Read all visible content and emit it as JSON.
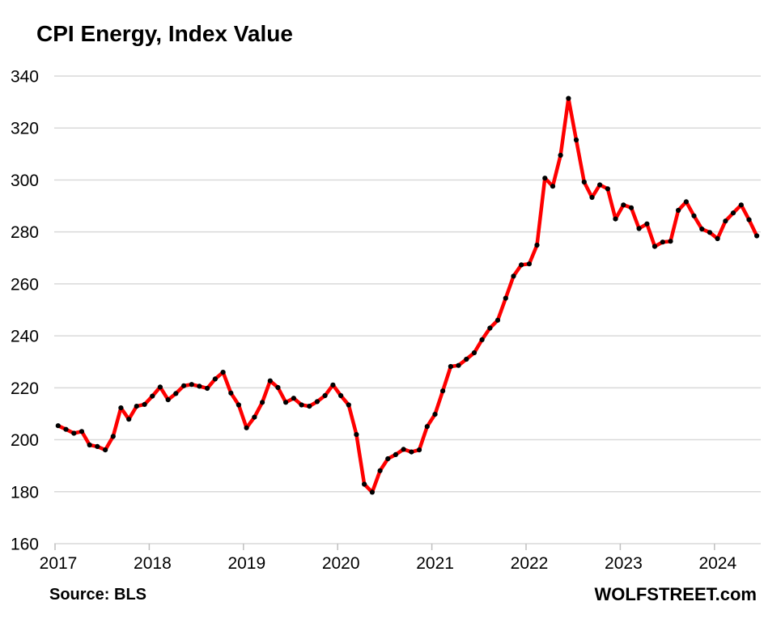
{
  "title": "CPI Energy, Index Value",
  "source_label": "Source: BLS",
  "watermark": "WOLFSTREET.com",
  "chart_data": {
    "type": "line",
    "title": "CPI Energy, Index Value",
    "xlabel": "",
    "ylabel": "Index Value",
    "frequency": "monthly",
    "x_start": "2017-01",
    "x_end": "2024-06",
    "x_tick_labels": [
      "2017",
      "2018",
      "2019",
      "2020",
      "2021",
      "2022",
      "2023",
      "2024"
    ],
    "y_ticks": [
      160,
      180,
      200,
      220,
      240,
      260,
      280,
      300,
      320,
      340
    ],
    "ylim": [
      160,
      340
    ],
    "grid": "horizontal",
    "legend": "none",
    "colors": {
      "line": "#fe0000",
      "marker": "#000000",
      "gridline": "#d9d9d9",
      "axis": "#bfbfbf"
    },
    "series": [
      {
        "name": "CPI Energy",
        "values": [
          205.4,
          204.0,
          202.5,
          203.2,
          198.0,
          197.4,
          196.1,
          201.3,
          212.3,
          207.9,
          212.9,
          213.6,
          216.8,
          220.3,
          215.4,
          217.8,
          220.8,
          221.3,
          220.6,
          219.8,
          223.4,
          226.0,
          218.0,
          213.4,
          204.6,
          208.7,
          214.4,
          222.7,
          220.1,
          214.4,
          216.0,
          213.4,
          212.9,
          214.7,
          217.0,
          221.1,
          217.0,
          213.4,
          202.0,
          182.9,
          179.8,
          188.1,
          192.7,
          194.3,
          196.3,
          195.3,
          196.1,
          205.1,
          209.8,
          218.8,
          228.2,
          228.6,
          231.0,
          233.5,
          238.5,
          243.0,
          246.0,
          254.5,
          263.0,
          267.3,
          267.7,
          274.9,
          300.7,
          297.6,
          309.5,
          331.4,
          315.4,
          299.2,
          293.3,
          298.1,
          296.6,
          285.0,
          290.4,
          289.3,
          281.3,
          283.1,
          274.4,
          276.1,
          276.4,
          288.3,
          291.6,
          286.2,
          281.1,
          279.8,
          277.4,
          284.2,
          287.3,
          290.4,
          284.7,
          278.5
        ]
      }
    ]
  }
}
